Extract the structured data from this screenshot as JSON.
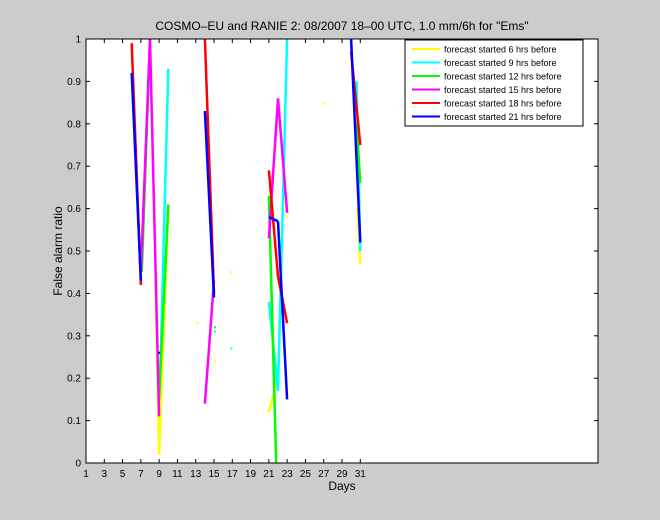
{
  "chart_data": {
    "type": "line",
    "title": "COSMO–EU and RANIE 2: 08/2007 18–00 UTC, 1.0 mm/6h for \"Ems\"",
    "xlabel": "Days",
    "ylabel": "False alarm ratio",
    "xlim": [
      1,
      57
    ],
    "ylim": [
      0,
      1
    ],
    "xticks": [
      1,
      3,
      5,
      7,
      9,
      11,
      13,
      15,
      17,
      19,
      21,
      23,
      25,
      27,
      29,
      31
    ],
    "yticks": [
      0,
      0.1,
      0.2,
      0.3,
      0.4,
      0.5,
      0.6,
      0.7,
      0.8,
      0.9,
      1
    ],
    "ytick_labels": [
      "0",
      "0.1",
      "0.2",
      "0.3",
      "0.4",
      "0.5",
      "0.6",
      "0.7",
      "0.8",
      "0.9",
      "1"
    ],
    "grid": false,
    "legend_position": "top-right",
    "series": [
      {
        "name": "forecast started 6 hrs before",
        "color": "#ffff00",
        "segments": [
          [
            [
              2.8,
              1.0
            ]
          ],
          [
            [
              8.6,
              0.43
            ],
            [
              9.0,
              0.02
            ]
          ],
          [
            [
              9.0,
              0.02
            ],
            [
              10.0,
              0.6
            ]
          ],
          [
            [
              13.2,
              0.33
            ]
          ],
          [
            [
              15.1,
              0.24
            ]
          ],
          [
            [
              16.9,
              0.45
            ]
          ],
          [
            [
              21.0,
              0.12
            ],
            [
              22.0,
              0.2
            ]
          ],
          [
            [
              23.0,
              0.58
            ]
          ],
          [
            [
              27.0,
              0.85
            ]
          ],
          [
            [
              30.7,
              0.6
            ],
            [
              31.0,
              0.47
            ]
          ]
        ]
      },
      {
        "name": "forecast started 9 hrs before",
        "color": "#00ffff",
        "segments": [
          [
            [
              9.1,
              0.2
            ],
            [
              10.0,
              0.93
            ]
          ],
          [
            [
              15.1,
              0.31
            ]
          ],
          [
            [
              16.9,
              0.27
            ]
          ],
          [
            [
              21.0,
              0.38
            ],
            [
              22.0,
              0.17
            ]
          ],
          [
            [
              22.0,
              0.17
            ],
            [
              23.0,
              1.0
            ]
          ],
          [
            [
              30.6,
              0.9
            ],
            [
              31.0,
              0.5
            ]
          ]
        ]
      },
      {
        "name": "forecast started 12 hrs before",
        "color": "#00ff00",
        "segments": [
          [
            [
              7.1,
              0.45
            ],
            [
              8.0,
              1.0
            ]
          ],
          [
            [
              9.0,
              0.15
            ],
            [
              10.0,
              0.61
            ]
          ],
          [
            [
              15.1,
              0.32
            ]
          ],
          [
            [
              21.0,
              0.63
            ],
            [
              21.8,
              0.0
            ]
          ],
          [
            [
              30.6,
              0.8
            ],
            [
              31.0,
              0.66
            ]
          ]
        ]
      },
      {
        "name": "forecast started 15 hrs before",
        "color": "#ff00ff",
        "segments": [
          [
            [
              7.0,
              0.45
            ],
            [
              8.0,
              1.0
            ]
          ],
          [
            [
              8.0,
              1.0
            ],
            [
              9.0,
              0.11
            ]
          ],
          [
            [
              14.0,
              0.14
            ],
            [
              15.0,
              0.43
            ]
          ],
          [
            [
              21.0,
              0.53
            ],
            [
              22.0,
              0.86
            ]
          ],
          [
            [
              22.0,
              0.86
            ],
            [
              23.0,
              0.59
            ]
          ]
        ]
      },
      {
        "name": "forecast started 18 hrs before",
        "color": "#ff0000",
        "segments": [
          [
            [
              6.0,
              0.99
            ],
            [
              7.0,
              0.42
            ]
          ],
          [
            [
              14.0,
              1.0
            ],
            [
              15.0,
              0.4
            ]
          ],
          [
            [
              21.0,
              0.69
            ],
            [
              22.0,
              0.44
            ]
          ],
          [
            [
              22.0,
              0.44
            ],
            [
              23.0,
              0.33
            ]
          ],
          [
            [
              30.0,
              0.97
            ],
            [
              31.0,
              0.75
            ]
          ]
        ]
      },
      {
        "name": "forecast started 21 hrs before",
        "color": "#0000ff",
        "segments": [
          [
            [
              6.0,
              0.92
            ],
            [
              7.0,
              0.43
            ]
          ],
          [
            [
              9.0,
              0.26
            ]
          ],
          [
            [
              14.0,
              0.83
            ],
            [
              15.0,
              0.39
            ]
          ],
          [
            [
              21.0,
              0.58
            ],
            [
              22.0,
              0.57
            ]
          ],
          [
            [
              22.0,
              0.57
            ],
            [
              23.0,
              0.15
            ]
          ],
          [
            [
              30.0,
              1.0
            ],
            [
              31.0,
              0.52
            ]
          ]
        ]
      }
    ]
  }
}
